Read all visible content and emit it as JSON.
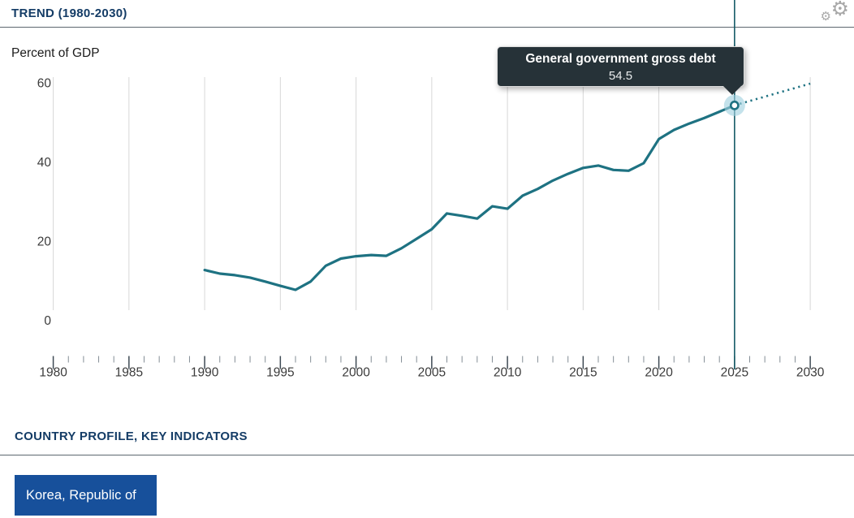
{
  "header": {
    "trend_title": "TREND (1980-2030)"
  },
  "icons": {
    "gear": "⚙"
  },
  "chart": {
    "unit_label": "Percent of GDP"
  },
  "tooltip": {
    "title": "General government gross debt",
    "value": "54.5"
  },
  "sections": {
    "country_profile_title": "COUNTRY PROFILE, KEY INDICATORS"
  },
  "country_button": {
    "label": "Korea, Republic of"
  },
  "colors": {
    "navy": "#143c66",
    "line": "#1e7282",
    "hover_line": "#145a66",
    "halo": "#9fd0de",
    "tooltip_bg": "#263238",
    "button_bg": "#17509b",
    "grid": "#d7d7d7",
    "tick_major": "#3e4a54",
    "tick_minor": "#838d95",
    "axis_text": "#3b3b3b",
    "rule": "#5d676f",
    "gear": "#a8a8a8"
  },
  "chart_data": {
    "type": "line",
    "title": "TREND (1980-2030)",
    "ylabel": "Percent of GDP",
    "xlabel": "",
    "xlim": [
      1980,
      2030
    ],
    "ylim": [
      0,
      60
    ],
    "y_ticks": [
      0,
      20,
      40,
      60
    ],
    "x_major_ticks": [
      1980,
      1985,
      1990,
      1995,
      2000,
      2005,
      2010,
      2015,
      2020,
      2025,
      2030
    ],
    "x_minor_tick_interval": 1,
    "grid": "vertical-only",
    "legend": "none",
    "series": [
      {
        "name": "General government gross debt",
        "style": "solid",
        "years": [
          1990,
          1991,
          1992,
          1993,
          1994,
          1995,
          1996,
          1997,
          1998,
          1999,
          2000,
          2001,
          2002,
          2003,
          2004,
          2005,
          2006,
          2007,
          2008,
          2009,
          2010,
          2011,
          2012,
          2013,
          2014,
          2015,
          2016,
          2017,
          2018,
          2019,
          2020,
          2021,
          2022,
          2023,
          2024,
          2025
        ],
        "values": [
          12.9,
          12.0,
          11.6,
          11.0,
          10.0,
          8.9,
          7.9,
          10.0,
          14.0,
          15.8,
          16.4,
          16.7,
          16.5,
          18.4,
          20.8,
          23.2,
          27.2,
          26.6,
          25.9,
          29.0,
          28.4,
          31.7,
          33.4,
          35.5,
          37.2,
          38.7,
          39.3,
          38.2,
          38.0,
          39.9,
          46.0,
          48.3,
          49.9,
          51.3,
          52.9,
          54.5
        ]
      },
      {
        "name": "General government gross debt (projection)",
        "style": "dotted",
        "years": [
          2025,
          2026,
          2027,
          2028,
          2029,
          2030
        ],
        "values": [
          54.5,
          55.6,
          56.7,
          57.8,
          58.9,
          60.0
        ]
      }
    ],
    "highlight": {
      "year": 2025,
      "value": 54.5
    }
  }
}
